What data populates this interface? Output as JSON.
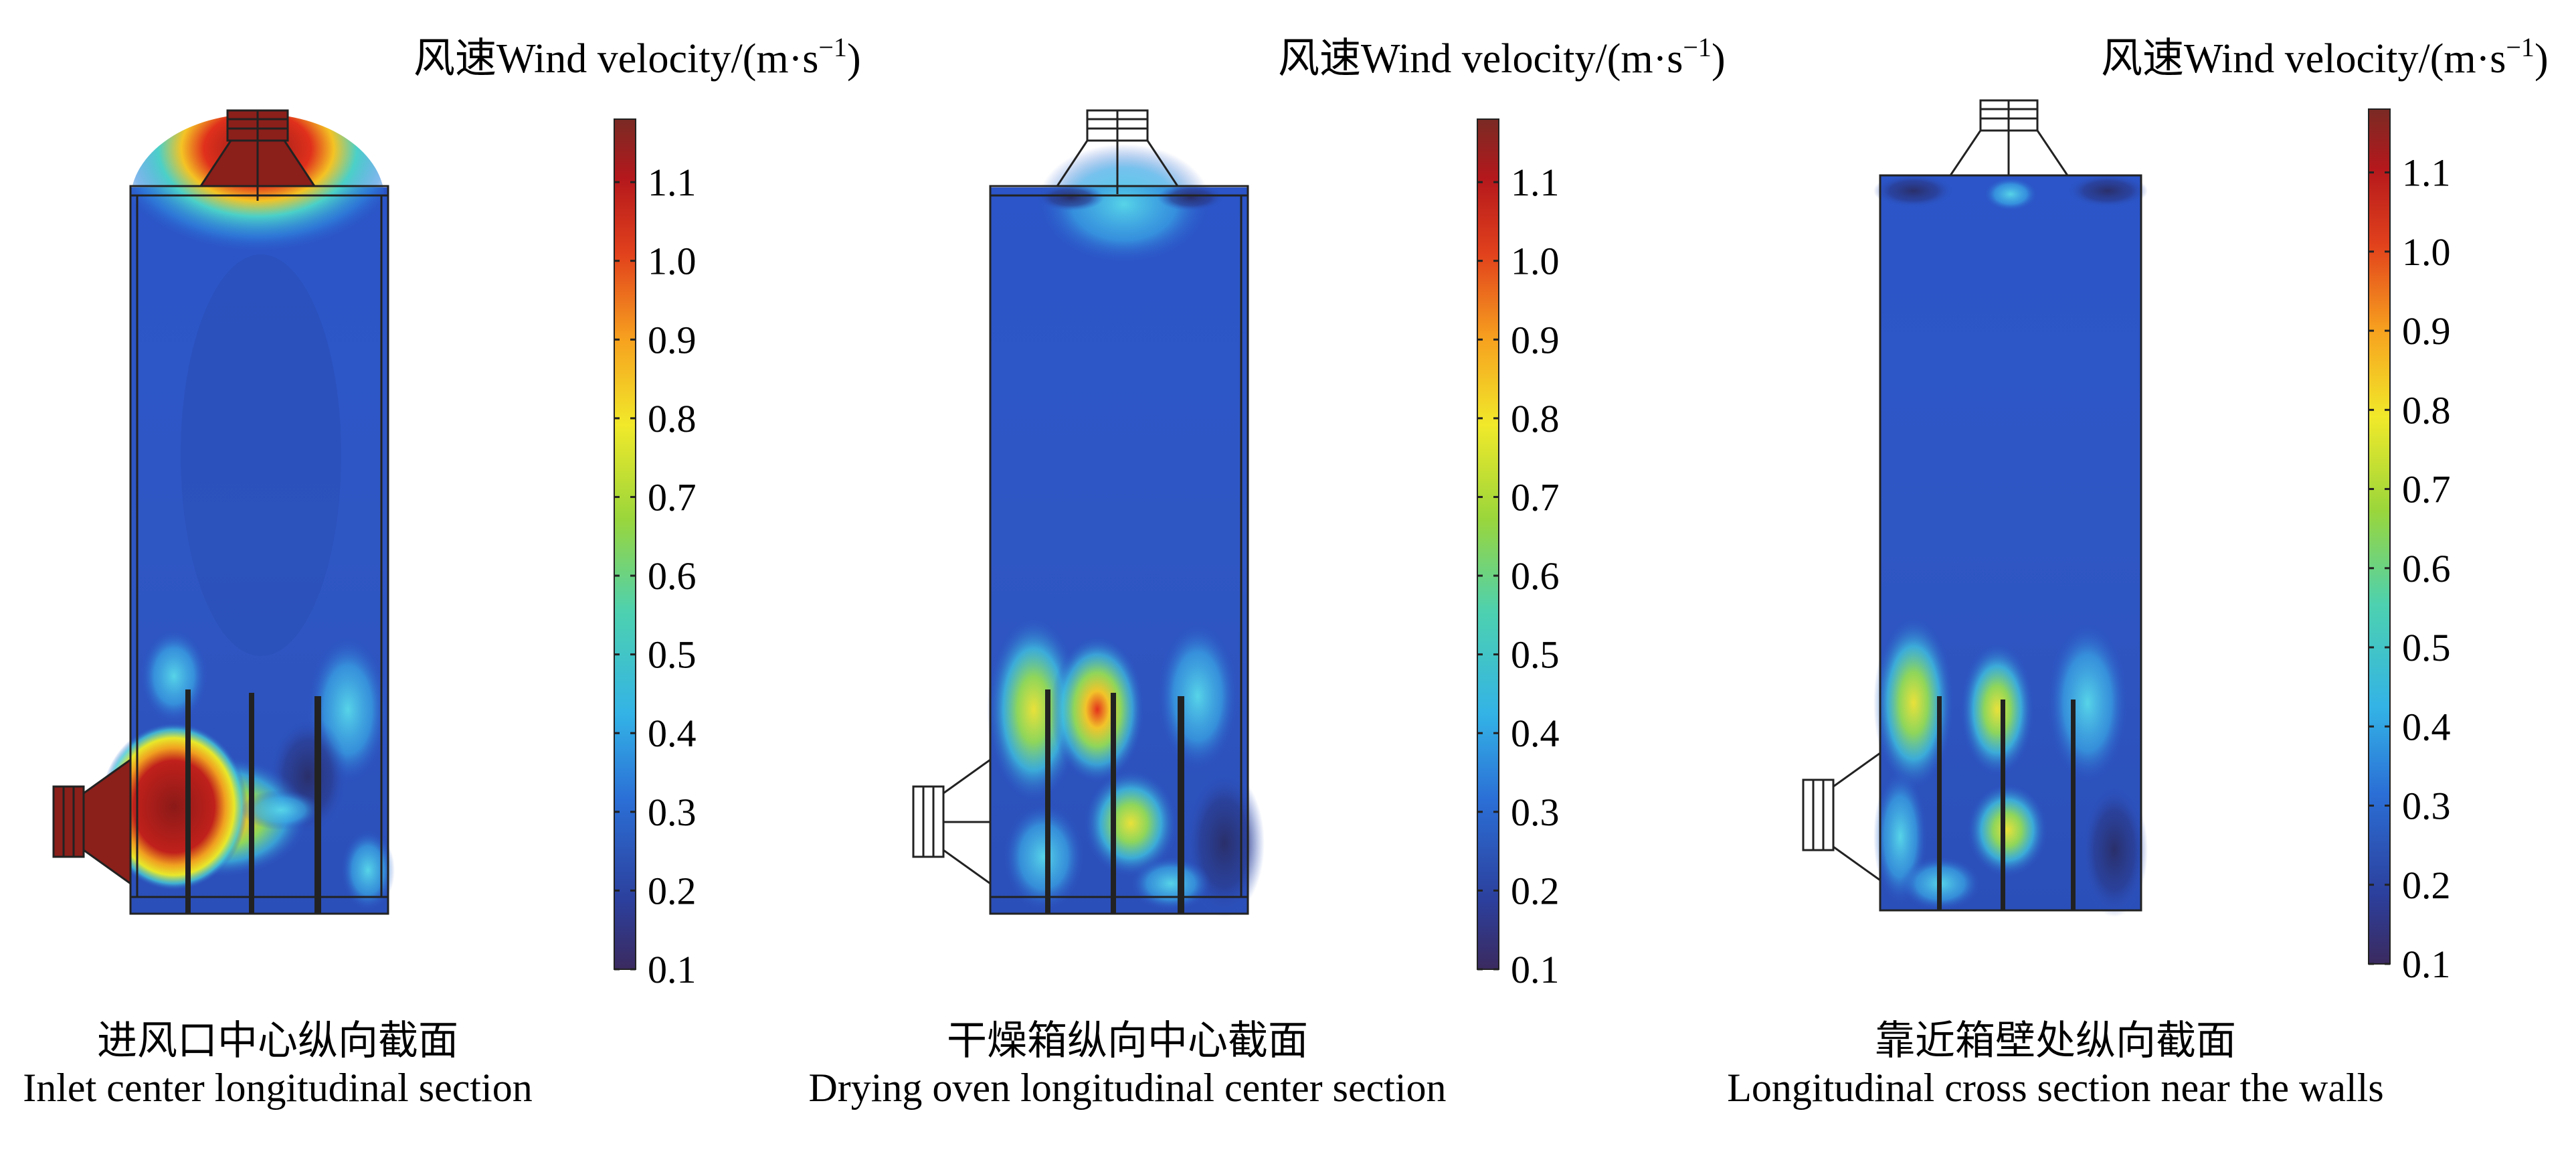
{
  "colorbar": {
    "title_cn": "风速",
    "title_en": "Wind velocity/(m·s",
    "title_sup": "−1",
    "title_close": ")",
    "ticks": [
      "1.1",
      "1.0",
      "0.9",
      "0.8",
      "0.7",
      "0.6",
      "0.5",
      "0.4",
      "0.3",
      "0.2",
      "0.1"
    ],
    "tick_values": [
      1.1,
      1.0,
      0.9,
      0.8,
      0.7,
      0.6,
      0.5,
      0.4,
      0.3,
      0.2,
      0.1
    ],
    "range": [
      0.1,
      1.18
    ],
    "colormap": [
      "#3b2a5f",
      "#2c3f9c",
      "#2b6fd6",
      "#33b3e6",
      "#4dd1b0",
      "#9ad63b",
      "#f1e92a",
      "#f7a21f",
      "#e2421c",
      "#b5181c",
      "#7a2a24"
    ]
  },
  "panels": [
    {
      "caption_cn": "进风口中心纵向截面",
      "caption_en": "Inlet center longitudinal section"
    },
    {
      "caption_cn": "干燥箱纵向中心截面",
      "caption_en": "Drying oven longitudinal center section"
    },
    {
      "caption_cn": "靠近箱壁处纵向截面",
      "caption_en": "Longitudinal cross section near the walls"
    }
  ]
}
